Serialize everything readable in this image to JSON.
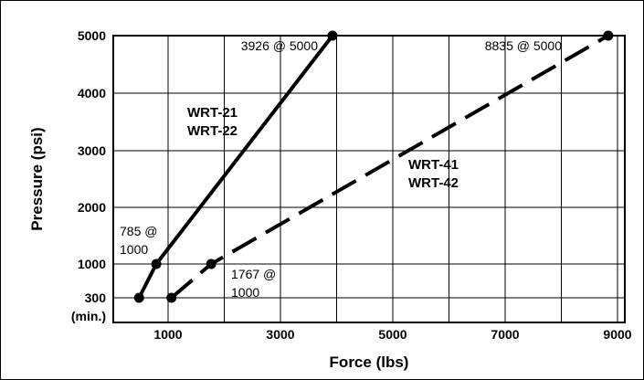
{
  "chart_data": {
    "type": "line",
    "xlabel": "Force (lbs)",
    "ylabel": "Pressure (psi)",
    "xlim": [
      0,
      10000
    ],
    "ylim": [
      0,
      5000
    ],
    "x_ticks": [
      {
        "value": 1000,
        "label": "1000"
      },
      {
        "value": 3000,
        "label": "3000"
      },
      {
        "value": 5000,
        "label": "5000"
      },
      {
        "value": 7000,
        "label": "7000"
      },
      {
        "value": 9000,
        "label": "9000"
      }
    ],
    "y_ticks": [
      {
        "value": 300,
        "label": "300"
      },
      {
        "value": 1000,
        "label": "1000"
      },
      {
        "value": 2000,
        "label": "2000"
      },
      {
        "value": 3000,
        "label": "3000"
      },
      {
        "value": 4000,
        "label": "4000"
      },
      {
        "value": 5000,
        "label": "5000"
      }
    ],
    "y_min_note": "(min.)",
    "grid": true,
    "series": [
      {
        "name_lines": [
          "WRT-21",
          "WRT-22"
        ],
        "dash": "solid",
        "x": [
          471,
          785,
          3926
        ],
        "y": [
          300,
          1000,
          5000
        ]
      },
      {
        "name_lines": [
          "WRT-41",
          "WRT-42"
        ],
        "dash": "dashed",
        "x": [
          1060,
          1767,
          8835
        ],
        "y": [
          300,
          1000,
          5000
        ]
      }
    ],
    "annotations": [
      {
        "lines": [
          "3926 @ 5000"
        ]
      },
      {
        "lines": [
          "8835 @ 5000"
        ]
      },
      {
        "lines": [
          "785 @",
          "1000"
        ]
      },
      {
        "lines": [
          "1767 @",
          "1000"
        ]
      }
    ]
  }
}
